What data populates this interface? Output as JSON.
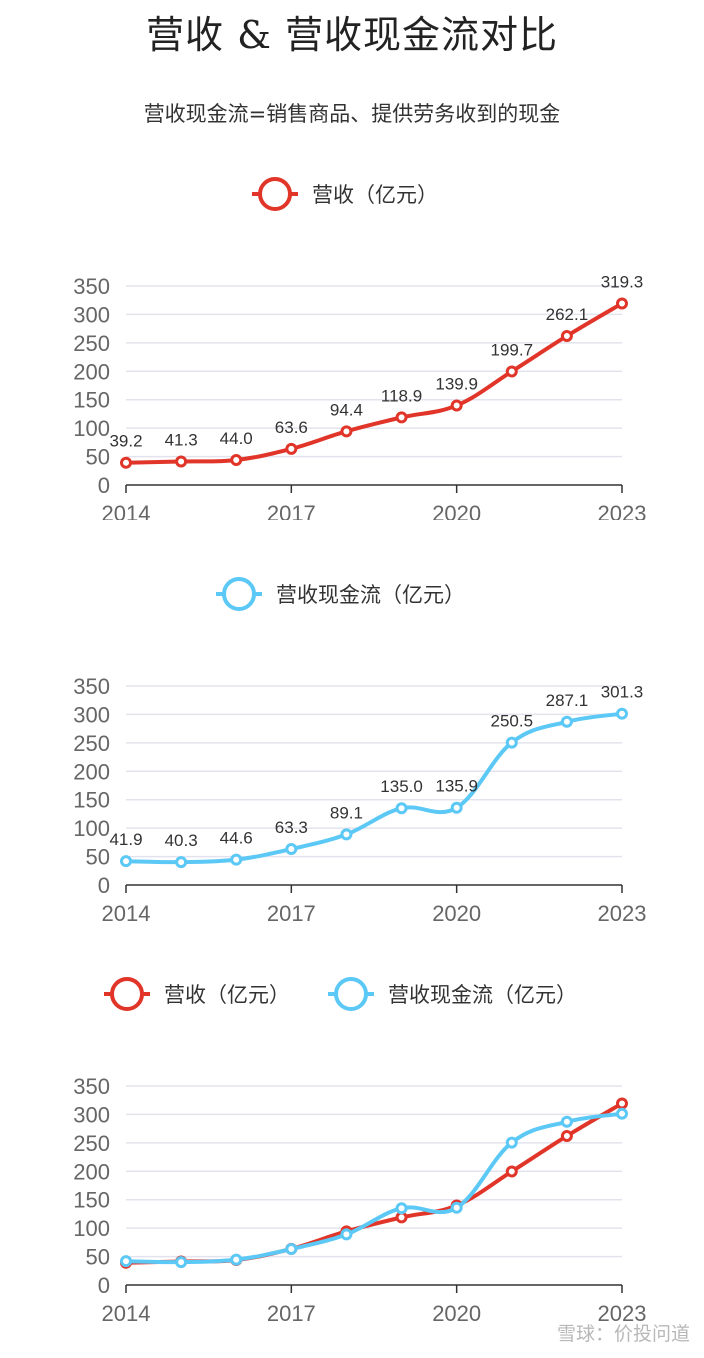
{
  "title": "营收 & 营收现金流对比",
  "subtitle": "营收现金流=销售商品、提供劳务收到的现金",
  "watermark": "雪球：价投问道",
  "colors": {
    "revenue": "#e03528",
    "cashflow": "#5bc8f5",
    "grid": "#e3e3ef",
    "axis": "#333333"
  },
  "chart_data": [
    {
      "type": "line",
      "x": [
        2014,
        2015,
        2016,
        2017,
        2018,
        2019,
        2020,
        2021,
        2022,
        2023
      ],
      "x_ticks": [
        "2014",
        "2017",
        "2020",
        "2023"
      ],
      "y_ticks": [
        "0",
        "50",
        "100",
        "150",
        "200",
        "250",
        "300",
        "350"
      ],
      "ylim": [
        0,
        350
      ],
      "grid": true,
      "legend": "top-center",
      "show_data_labels": true,
      "series": [
        {
          "key": "revenue",
          "name": "营收（亿元）",
          "values": [
            39.2,
            41.3,
            44.0,
            63.6,
            94.4,
            118.9,
            139.9,
            199.7,
            262.1,
            319.3
          ],
          "labels": [
            "39.2",
            "41.3",
            "44.0",
            "63.6",
            "94.4",
            "118.9",
            "139.9",
            "199.7",
            "262.1",
            "319.3"
          ]
        }
      ]
    },
    {
      "type": "line",
      "x": [
        2014,
        2015,
        2016,
        2017,
        2018,
        2019,
        2020,
        2021,
        2022,
        2023
      ],
      "x_ticks": [
        "2014",
        "2017",
        "2020",
        "2023"
      ],
      "y_ticks": [
        "0",
        "50",
        "100",
        "150",
        "200",
        "250",
        "300",
        "350"
      ],
      "ylim": [
        0,
        350
      ],
      "grid": true,
      "legend": "top-center",
      "show_data_labels": true,
      "series": [
        {
          "key": "cashflow",
          "name": "营收现金流（亿元）",
          "values": [
            41.9,
            40.3,
            44.6,
            63.3,
            89.1,
            135.0,
            135.9,
            250.5,
            287.1,
            301.3
          ],
          "labels": [
            "41.9",
            "40.3",
            "44.6",
            "63.3",
            "89.1",
            "135.0",
            "135.9",
            "250.5",
            "287.1",
            "301.3"
          ]
        }
      ]
    },
    {
      "type": "line",
      "x": [
        2014,
        2015,
        2016,
        2017,
        2018,
        2019,
        2020,
        2021,
        2022,
        2023
      ],
      "x_ticks": [
        "2014",
        "2017",
        "2020",
        "2023"
      ],
      "y_ticks": [
        "0",
        "50",
        "100",
        "150",
        "200",
        "250",
        "300",
        "350"
      ],
      "ylim": [
        0,
        350
      ],
      "grid": true,
      "legend": "top-center",
      "show_data_labels": false,
      "series": [
        {
          "key": "revenue",
          "name": "营收（亿元）",
          "values": [
            39.2,
            41.3,
            44.0,
            63.6,
            94.4,
            118.9,
            139.9,
            199.7,
            262.1,
            319.3
          ]
        },
        {
          "key": "cashflow",
          "name": "营收现金流（亿元）",
          "values": [
            41.9,
            40.3,
            44.6,
            63.3,
            89.1,
            135.0,
            135.9,
            250.5,
            287.1,
            301.3
          ]
        }
      ]
    }
  ]
}
